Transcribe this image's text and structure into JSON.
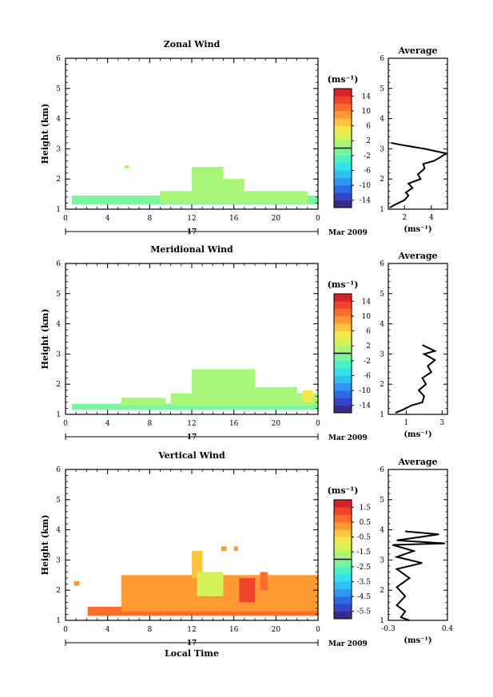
{
  "figure": {
    "time_axis_label": "Local Time",
    "date_label": "Mar 2009",
    "day_label": "17",
    "avg_title": "Average",
    "avg_unit_label": "(ms⁻¹)",
    "colorbar_unit_label": "(ms⁻¹)",
    "height_label": "Height (km)"
  },
  "colormap": [
    "#3b2a86",
    "#3346c9",
    "#2e6be6",
    "#2f97f0",
    "#2fc0f2",
    "#33e2e8",
    "#4bf0c6",
    "#79f59c",
    "#a8f677",
    "#d2f257",
    "#f2e84a",
    "#ffc53d",
    "#ff9a33",
    "#ff6d2e",
    "#f0452b",
    "#d4232a"
  ],
  "chart_data": [
    {
      "type": "heatmap",
      "title": "Zonal Wind",
      "ylabel": "Height (km)",
      "xlabel": "",
      "x_ticks": [
        "0",
        "4",
        "8",
        "12",
        "16",
        "20",
        "0"
      ],
      "x_range_hours": [
        0,
        24
      ],
      "ylim": [
        1,
        6
      ],
      "y_ticks": [
        "1",
        "2",
        "3",
        "4",
        "5",
        "6"
      ],
      "colorbar": {
        "label": "(ms⁻¹)",
        "range": [
          -16,
          16
        ],
        "ticks": [
          "14",
          "10",
          "6",
          "2",
          "-2",
          "-6",
          "-10",
          "-14"
        ]
      },
      "fill": [
        {
          "t0": 0.6,
          "t1": 24,
          "h0": 1.15,
          "h1": 1.45,
          "v": -1.5
        },
        {
          "t0": 9,
          "t1": 23,
          "h0": 1.2,
          "h1": 1.6,
          "v": 1
        },
        {
          "t0": 12,
          "t1": 15,
          "h0": 1.4,
          "h1": 2.4,
          "v": 1.5
        },
        {
          "t0": 15,
          "t1": 17,
          "h0": 1.4,
          "h1": 2.0,
          "v": 1.5
        },
        {
          "t0": 5.6,
          "t1": 6,
          "h0": 2.35,
          "h1": 2.45,
          "v": 0.5
        }
      ],
      "avg_profile": {
        "xlim": [
          0.8,
          5.2
        ],
        "x_ticks": [
          "2",
          "4"
        ],
        "x_tick_values": [
          2,
          4
        ],
        "points": [
          [
            0.9,
            1.05
          ],
          [
            1.3,
            1.15
          ],
          [
            2.0,
            1.3
          ],
          [
            2.3,
            1.45
          ],
          [
            2.1,
            1.55
          ],
          [
            2.6,
            1.7
          ],
          [
            2.3,
            1.85
          ],
          [
            3.2,
            2.0
          ],
          [
            3.0,
            2.15
          ],
          [
            3.5,
            2.35
          ],
          [
            3.4,
            2.5
          ],
          [
            4.2,
            2.6
          ],
          [
            4.6,
            2.7
          ],
          [
            5.1,
            2.85
          ],
          [
            3.5,
            3.0
          ],
          [
            1.5,
            3.15
          ],
          [
            1.0,
            3.2
          ]
        ]
      }
    },
    {
      "type": "heatmap",
      "title": "Meridional Wind",
      "ylabel": "Height (km)",
      "xlabel": "",
      "x_ticks": [
        "0",
        "4",
        "8",
        "12",
        "16",
        "20",
        "0"
      ],
      "x_range_hours": [
        0,
        24
      ],
      "ylim": [
        1,
        6
      ],
      "y_ticks": [
        "1",
        "2",
        "3",
        "4",
        "5",
        "6"
      ],
      "colorbar": {
        "label": "(ms⁻¹)",
        "range": [
          -16,
          16
        ],
        "ticks": [
          "14",
          "10",
          "6",
          "2",
          "-2",
          "-6",
          "-10",
          "-14"
        ]
      },
      "fill": [
        {
          "t0": 0.6,
          "t1": 24,
          "h0": 1.15,
          "h1": 1.35,
          "v": -1.5
        },
        {
          "t0": 5.3,
          "t1": 9.5,
          "h0": 1.3,
          "h1": 1.55,
          "v": 1
        },
        {
          "t0": 10,
          "t1": 24,
          "h0": 1.3,
          "h1": 1.7,
          "v": 1
        },
        {
          "t0": 12,
          "t1": 18,
          "h0": 1.5,
          "h1": 2.5,
          "v": 1.5
        },
        {
          "t0": 18,
          "t1": 22,
          "h0": 1.4,
          "h1": 1.9,
          "v": 1.5
        },
        {
          "t0": 22.5,
          "t1": 23.5,
          "h0": 1.4,
          "h1": 1.8,
          "v": 5
        }
      ],
      "avg_profile": {
        "xlim": [
          0,
          3.3
        ],
        "x_ticks": [
          "1",
          "3"
        ],
        "x_tick_values": [
          1,
          3
        ],
        "points": [
          [
            0.4,
            1.05
          ],
          [
            0.8,
            1.15
          ],
          [
            1.3,
            1.3
          ],
          [
            1.9,
            1.4
          ],
          [
            2.0,
            1.6
          ],
          [
            1.7,
            1.8
          ],
          [
            2.1,
            2.0
          ],
          [
            1.9,
            2.2
          ],
          [
            2.4,
            2.4
          ],
          [
            2.2,
            2.6
          ],
          [
            2.6,
            2.8
          ],
          [
            2.0,
            3.0
          ],
          [
            2.6,
            3.1
          ],
          [
            1.9,
            3.3
          ]
        ]
      }
    },
    {
      "type": "heatmap",
      "title": "Vertical Wind",
      "ylabel": "Height (km)",
      "xlabel": "Local Time",
      "x_ticks": [
        "0",
        "4",
        "8",
        "12",
        "16",
        "20",
        "0"
      ],
      "x_range_hours": [
        0,
        24
      ],
      "ylim": [
        1,
        6
      ],
      "y_ticks": [
        "1",
        "2",
        "3",
        "4",
        "5",
        "6"
      ],
      "colorbar": {
        "label": "(ms⁻¹)",
        "range": [
          -6,
          2
        ],
        "ticks": [
          "1.5",
          "0.5",
          "-0.5",
          "-1.5",
          "-2.5",
          "-3.5",
          "-4.5",
          "-5.5"
        ]
      },
      "fill": [
        {
          "t0": 2.1,
          "t1": 24,
          "h0": 1.15,
          "h1": 1.45,
          "v": 0.6
        },
        {
          "t0": 5.3,
          "t1": 24,
          "h0": 1.3,
          "h1": 2.5,
          "v": 0.1
        },
        {
          "t0": 12,
          "t1": 13,
          "h0": 2.4,
          "h1": 3.3,
          "v": -0.4
        },
        {
          "t0": 12.5,
          "t1": 15,
          "h0": 1.8,
          "h1": 2.6,
          "v": -1.2
        },
        {
          "t0": 16.5,
          "t1": 18,
          "h0": 1.6,
          "h1": 2.4,
          "v": 1.3
        },
        {
          "t0": 18.5,
          "t1": 19.2,
          "h0": 2.0,
          "h1": 2.6,
          "v": 0.9
        },
        {
          "t0": 0.8,
          "t1": 1.3,
          "h0": 2.15,
          "h1": 2.3,
          "v": 0.2
        },
        {
          "t0": 14.8,
          "t1": 15.3,
          "h0": 3.3,
          "h1": 3.45,
          "v": 0.2
        },
        {
          "t0": 16,
          "t1": 16.4,
          "h0": 3.3,
          "h1": 3.45,
          "v": 0.2
        },
        {
          "t0": 21.5,
          "t1": 22.8,
          "h0": 2.0,
          "h1": 2.3,
          "v": 0.1
        }
      ],
      "avg_profile": {
        "xlim": [
          -0.3,
          0.4
        ],
        "x_ticks": [
          "-0.3",
          "0.4"
        ],
        "x_tick_values": [
          -0.3,
          0.4
        ],
        "points": [
          [
            -0.05,
            1.0
          ],
          [
            -0.15,
            1.1
          ],
          [
            -0.1,
            1.3
          ],
          [
            -0.2,
            1.5
          ],
          [
            -0.1,
            1.8
          ],
          [
            -0.2,
            2.1
          ],
          [
            -0.05,
            2.4
          ],
          [
            -0.2,
            2.7
          ],
          [
            0.1,
            2.9
          ],
          [
            -0.2,
            3.1
          ],
          [
            0.0,
            3.3
          ],
          [
            -0.25,
            3.5
          ],
          [
            0.37,
            3.55
          ],
          [
            -0.2,
            3.65
          ],
          [
            0.3,
            3.85
          ],
          [
            -0.1,
            3.95
          ]
        ]
      }
    }
  ]
}
